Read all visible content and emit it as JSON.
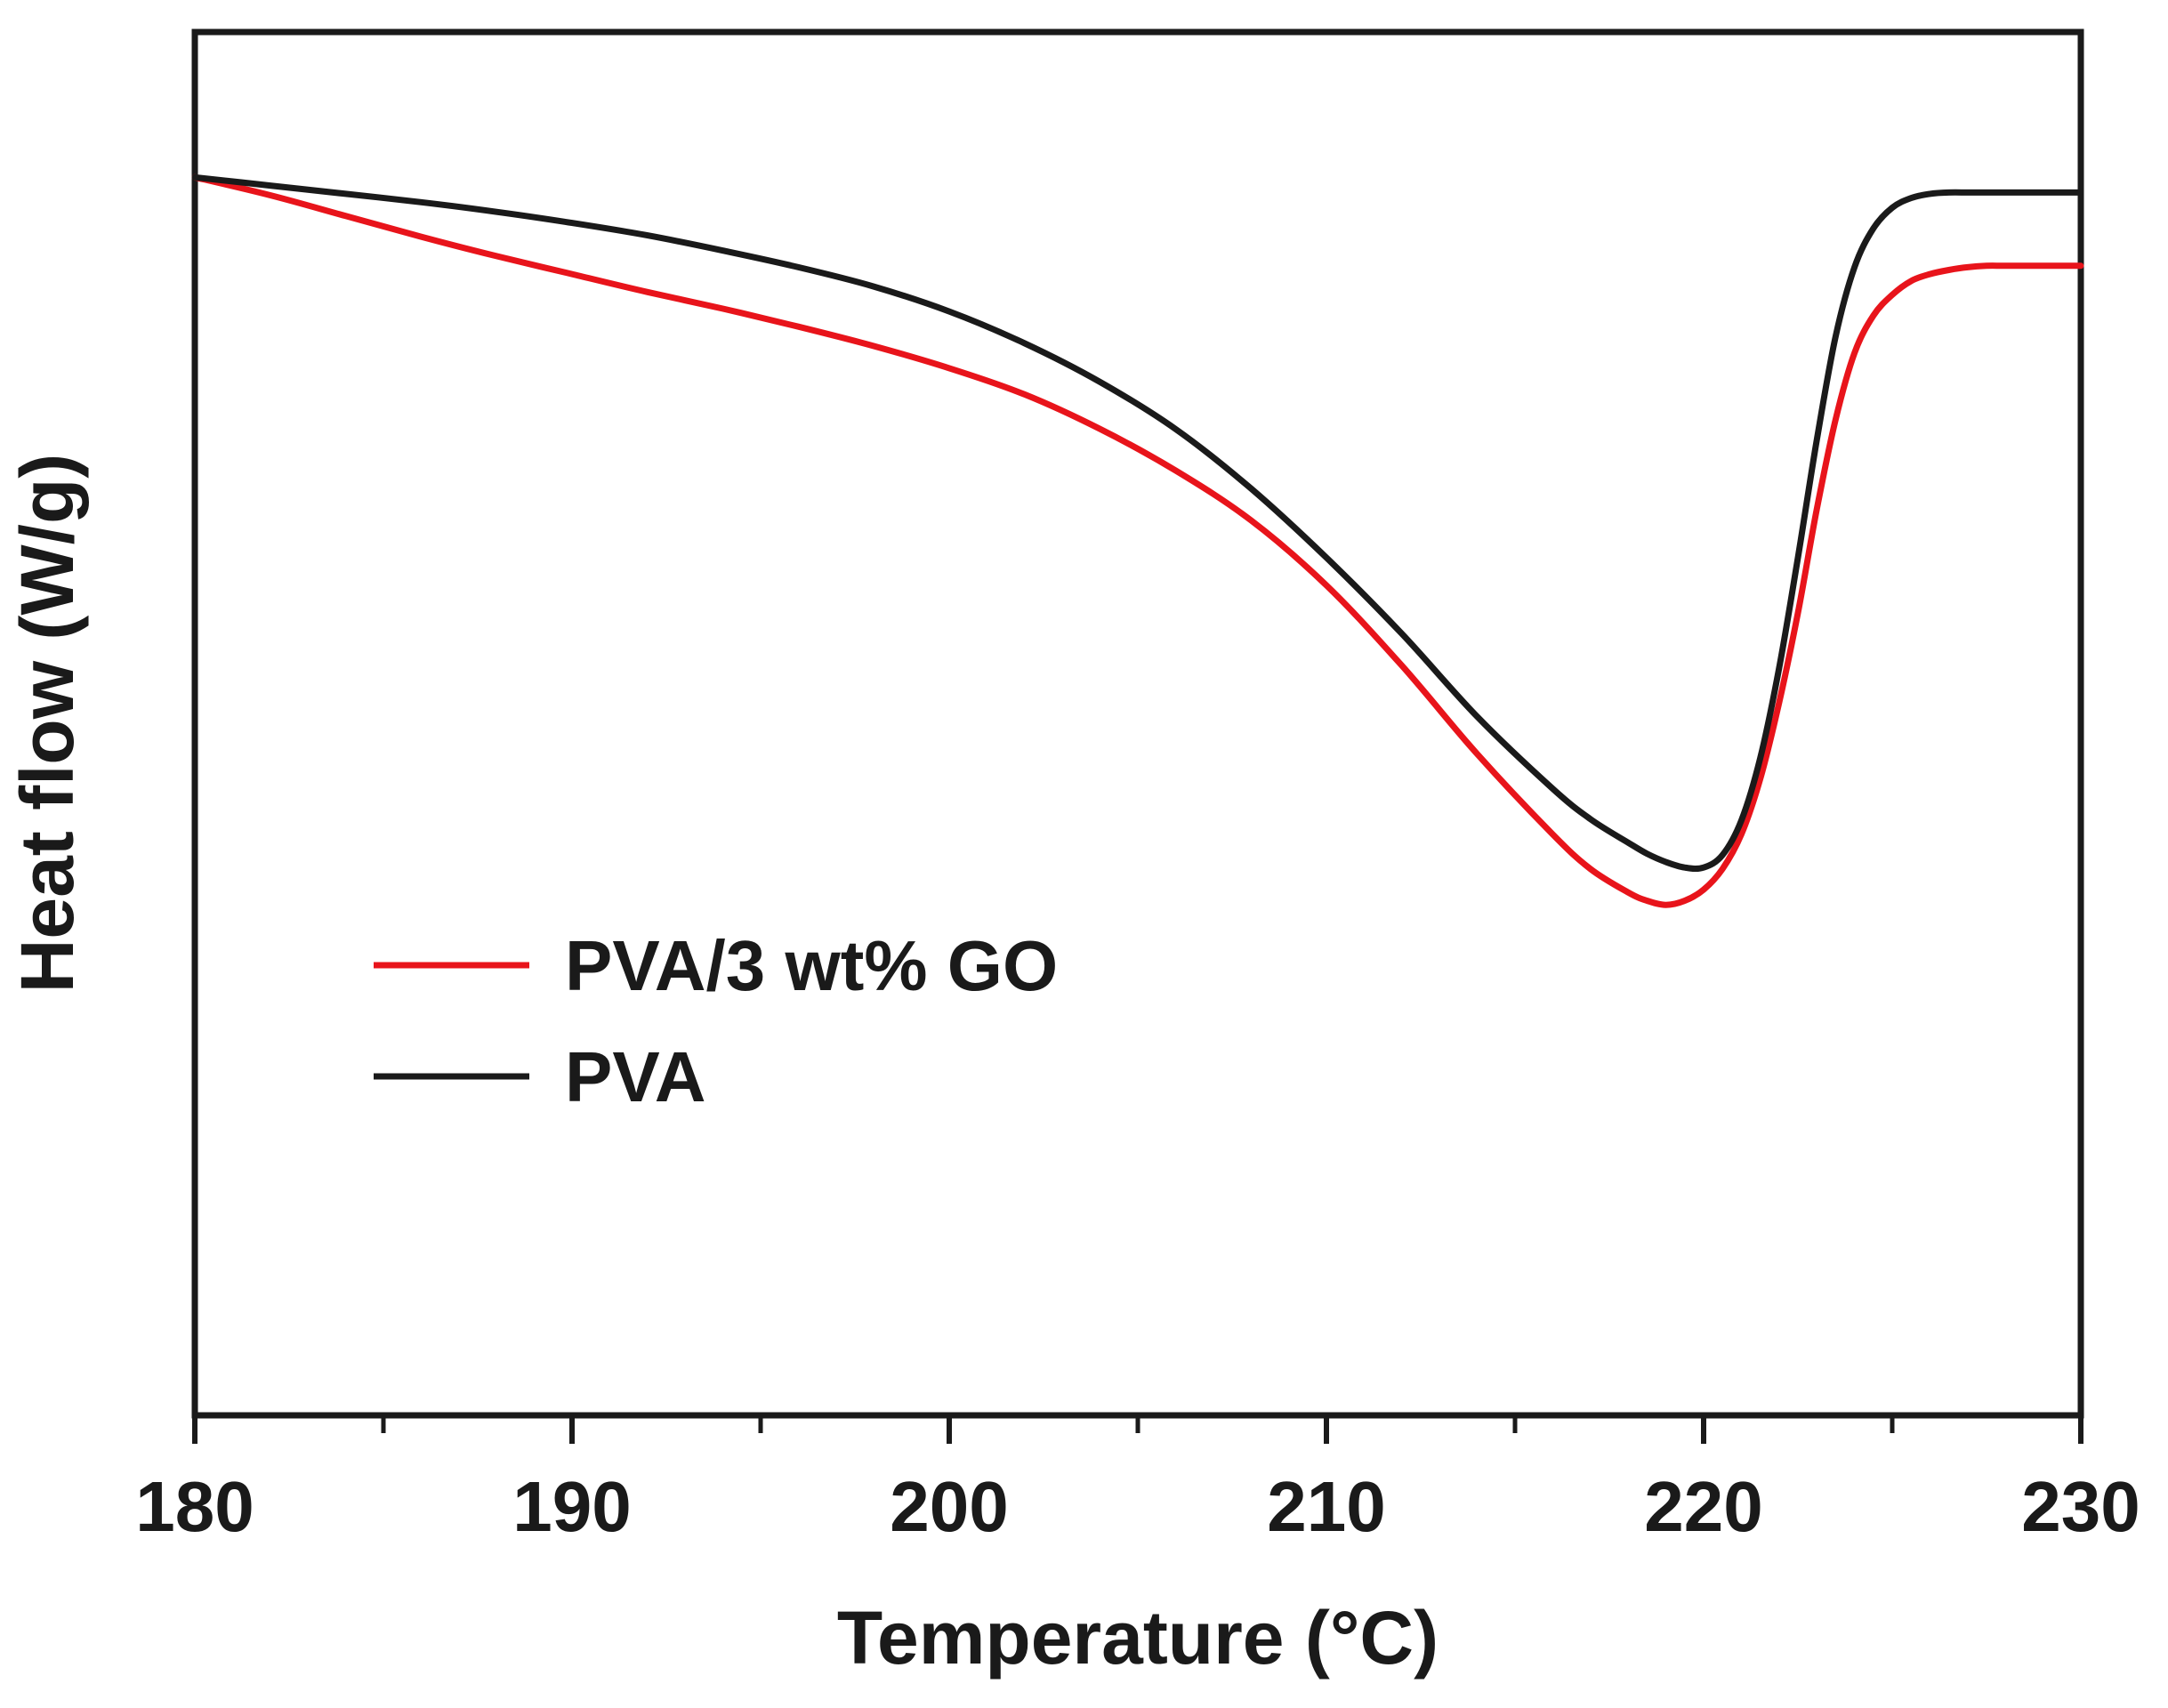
{
  "chart_data": {
    "type": "line",
    "title": "",
    "xlabel": "Temperature (°C)",
    "ylabel": "Heat flow (W/g)",
    "xlim": [
      180,
      230
    ],
    "ylim": [
      0,
      100
    ],
    "x_ticks": [
      180,
      190,
      200,
      210,
      220,
      230
    ],
    "x_minor_ticks": [
      185,
      195,
      205,
      215,
      225
    ],
    "y_ticks_shown": false,
    "grid": false,
    "legend_position": "center-left",
    "series": [
      {
        "name": "PVA/3 wt% GO",
        "color": "#e8141b",
        "x": [
          180,
          182,
          184,
          186,
          188,
          190,
          192,
          194,
          196,
          198,
          200,
          202,
          204,
          206,
          208,
          210,
          212,
          214,
          216,
          217,
          218,
          218.5,
          219,
          219.5,
          220,
          220.5,
          221,
          221.5,
          222,
          222.5,
          223,
          223.5,
          224,
          224.5,
          225,
          225.5,
          226,
          226.5,
          227,
          227.5,
          228,
          229,
          230
        ],
        "values": [
          89.5,
          88.2,
          86.7,
          85.2,
          83.8,
          82.5,
          81.2,
          80.0,
          78.7,
          77.3,
          75.7,
          73.8,
          71.3,
          68.3,
          64.7,
          60.0,
          54.2,
          47.8,
          42.0,
          39.5,
          37.8,
          37.2,
          36.9,
          37.2,
          38.0,
          39.5,
          42.0,
          46.0,
          51.5,
          58.0,
          65.5,
          72.0,
          76.8,
          79.5,
          81.0,
          82.0,
          82.5,
          82.8,
          83.0,
          83.1,
          83.1,
          83.1,
          83.1
        ]
      },
      {
        "name": "PVA",
        "color": "#1a1a1a",
        "x": [
          180,
          182,
          184,
          186,
          188,
          190,
          192,
          194,
          196,
          198,
          200,
          202,
          204,
          206,
          208,
          210,
          212,
          214,
          216,
          217,
          218,
          218.5,
          219,
          219.5,
          220,
          220.5,
          221,
          221.5,
          222,
          222.5,
          223,
          223.5,
          224,
          224.5,
          225,
          225.5,
          226,
          226.5,
          227,
          227.5,
          228,
          229,
          230
        ],
        "values": [
          89.5,
          88.9,
          88.3,
          87.7,
          87.0,
          86.2,
          85.3,
          84.2,
          83.0,
          81.6,
          79.8,
          77.5,
          74.7,
          71.3,
          67.0,
          62.0,
          56.5,
          50.5,
          45.3,
          43.1,
          41.4,
          40.6,
          40.0,
          39.6,
          39.6,
          40.5,
          43.0,
          47.5,
          54.0,
          62.0,
          70.5,
          78.0,
          83.0,
          85.8,
          87.3,
          88.0,
          88.3,
          88.4,
          88.4,
          88.4,
          88.4,
          88.4,
          88.4
        ]
      }
    ]
  }
}
